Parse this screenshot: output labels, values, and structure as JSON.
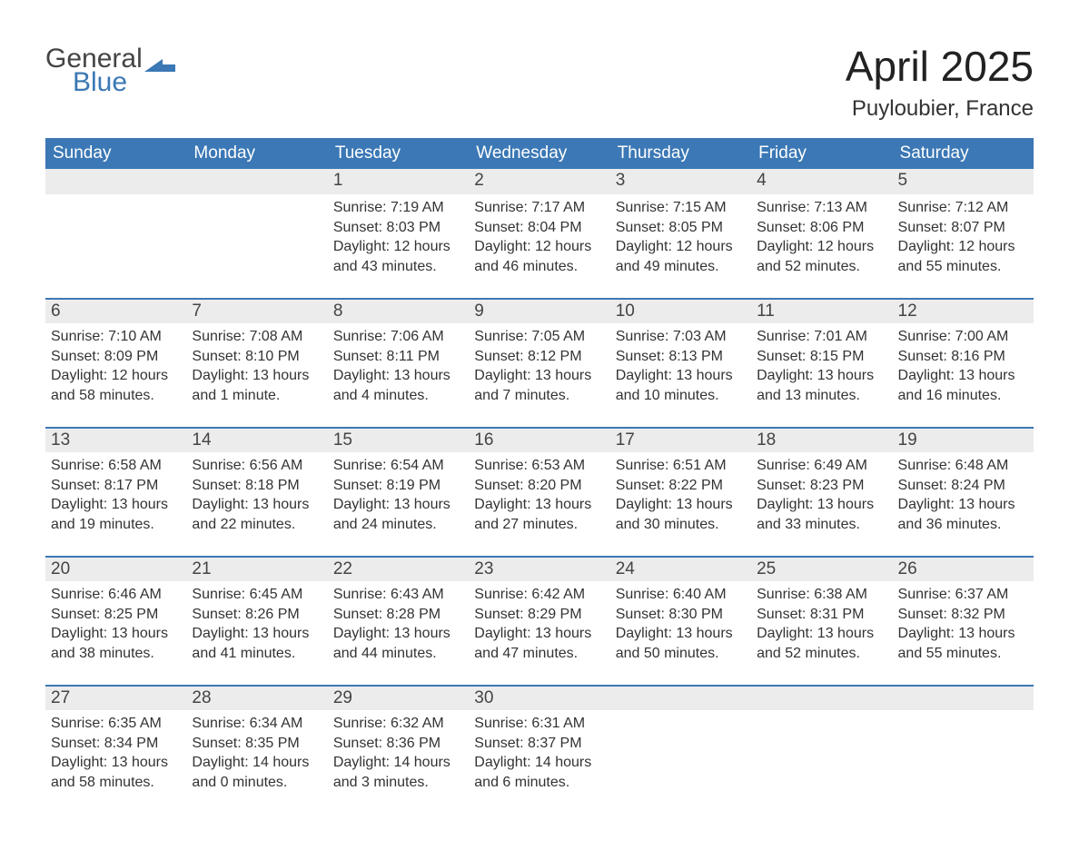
{
  "logo": {
    "general": "General",
    "blue": "Blue",
    "accent_color": "#3b78b5"
  },
  "title": "April 2025",
  "location": "Puyloubier, France",
  "colors": {
    "header_bg": "#3b78b5",
    "header_text": "#ffffff",
    "row_bg": "#ececec",
    "text": "#333333",
    "page_bg": "#ffffff"
  },
  "day_headers": [
    "Sunday",
    "Monday",
    "Tuesday",
    "Wednesday",
    "Thursday",
    "Friday",
    "Saturday"
  ],
  "weeks": [
    [
      {
        "n": "",
        "sunrise": "",
        "sunset": "",
        "daylight": ""
      },
      {
        "n": "",
        "sunrise": "",
        "sunset": "",
        "daylight": ""
      },
      {
        "n": "1",
        "sunrise": "Sunrise: 7:19 AM",
        "sunset": "Sunset: 8:03 PM",
        "daylight": "Daylight: 12 hours and 43 minutes."
      },
      {
        "n": "2",
        "sunrise": "Sunrise: 7:17 AM",
        "sunset": "Sunset: 8:04 PM",
        "daylight": "Daylight: 12 hours and 46 minutes."
      },
      {
        "n": "3",
        "sunrise": "Sunrise: 7:15 AM",
        "sunset": "Sunset: 8:05 PM",
        "daylight": "Daylight: 12 hours and 49 minutes."
      },
      {
        "n": "4",
        "sunrise": "Sunrise: 7:13 AM",
        "sunset": "Sunset: 8:06 PM",
        "daylight": "Daylight: 12 hours and 52 minutes."
      },
      {
        "n": "5",
        "sunrise": "Sunrise: 7:12 AM",
        "sunset": "Sunset: 8:07 PM",
        "daylight": "Daylight: 12 hours and 55 minutes."
      }
    ],
    [
      {
        "n": "6",
        "sunrise": "Sunrise: 7:10 AM",
        "sunset": "Sunset: 8:09 PM",
        "daylight": "Daylight: 12 hours and 58 minutes."
      },
      {
        "n": "7",
        "sunrise": "Sunrise: 7:08 AM",
        "sunset": "Sunset: 8:10 PM",
        "daylight": "Daylight: 13 hours and 1 minute."
      },
      {
        "n": "8",
        "sunrise": "Sunrise: 7:06 AM",
        "sunset": "Sunset: 8:11 PM",
        "daylight": "Daylight: 13 hours and 4 minutes."
      },
      {
        "n": "9",
        "sunrise": "Sunrise: 7:05 AM",
        "sunset": "Sunset: 8:12 PM",
        "daylight": "Daylight: 13 hours and 7 minutes."
      },
      {
        "n": "10",
        "sunrise": "Sunrise: 7:03 AM",
        "sunset": "Sunset: 8:13 PM",
        "daylight": "Daylight: 13 hours and 10 minutes."
      },
      {
        "n": "11",
        "sunrise": "Sunrise: 7:01 AM",
        "sunset": "Sunset: 8:15 PM",
        "daylight": "Daylight: 13 hours and 13 minutes."
      },
      {
        "n": "12",
        "sunrise": "Sunrise: 7:00 AM",
        "sunset": "Sunset: 8:16 PM",
        "daylight": "Daylight: 13 hours and 16 minutes."
      }
    ],
    [
      {
        "n": "13",
        "sunrise": "Sunrise: 6:58 AM",
        "sunset": "Sunset: 8:17 PM",
        "daylight": "Daylight: 13 hours and 19 minutes."
      },
      {
        "n": "14",
        "sunrise": "Sunrise: 6:56 AM",
        "sunset": "Sunset: 8:18 PM",
        "daylight": "Daylight: 13 hours and 22 minutes."
      },
      {
        "n": "15",
        "sunrise": "Sunrise: 6:54 AM",
        "sunset": "Sunset: 8:19 PM",
        "daylight": "Daylight: 13 hours and 24 minutes."
      },
      {
        "n": "16",
        "sunrise": "Sunrise: 6:53 AM",
        "sunset": "Sunset: 8:20 PM",
        "daylight": "Daylight: 13 hours and 27 minutes."
      },
      {
        "n": "17",
        "sunrise": "Sunrise: 6:51 AM",
        "sunset": "Sunset: 8:22 PM",
        "daylight": "Daylight: 13 hours and 30 minutes."
      },
      {
        "n": "18",
        "sunrise": "Sunrise: 6:49 AM",
        "sunset": "Sunset: 8:23 PM",
        "daylight": "Daylight: 13 hours and 33 minutes."
      },
      {
        "n": "19",
        "sunrise": "Sunrise: 6:48 AM",
        "sunset": "Sunset: 8:24 PM",
        "daylight": "Daylight: 13 hours and 36 minutes."
      }
    ],
    [
      {
        "n": "20",
        "sunrise": "Sunrise: 6:46 AM",
        "sunset": "Sunset: 8:25 PM",
        "daylight": "Daylight: 13 hours and 38 minutes."
      },
      {
        "n": "21",
        "sunrise": "Sunrise: 6:45 AM",
        "sunset": "Sunset: 8:26 PM",
        "daylight": "Daylight: 13 hours and 41 minutes."
      },
      {
        "n": "22",
        "sunrise": "Sunrise: 6:43 AM",
        "sunset": "Sunset: 8:28 PM",
        "daylight": "Daylight: 13 hours and 44 minutes."
      },
      {
        "n": "23",
        "sunrise": "Sunrise: 6:42 AM",
        "sunset": "Sunset: 8:29 PM",
        "daylight": "Daylight: 13 hours and 47 minutes."
      },
      {
        "n": "24",
        "sunrise": "Sunrise: 6:40 AM",
        "sunset": "Sunset: 8:30 PM",
        "daylight": "Daylight: 13 hours and 50 minutes."
      },
      {
        "n": "25",
        "sunrise": "Sunrise: 6:38 AM",
        "sunset": "Sunset: 8:31 PM",
        "daylight": "Daylight: 13 hours and 52 minutes."
      },
      {
        "n": "26",
        "sunrise": "Sunrise: 6:37 AM",
        "sunset": "Sunset: 8:32 PM",
        "daylight": "Daylight: 13 hours and 55 minutes."
      }
    ],
    [
      {
        "n": "27",
        "sunrise": "Sunrise: 6:35 AM",
        "sunset": "Sunset: 8:34 PM",
        "daylight": "Daylight: 13 hours and 58 minutes."
      },
      {
        "n": "28",
        "sunrise": "Sunrise: 6:34 AM",
        "sunset": "Sunset: 8:35 PM",
        "daylight": "Daylight: 14 hours and 0 minutes."
      },
      {
        "n": "29",
        "sunrise": "Sunrise: 6:32 AM",
        "sunset": "Sunset: 8:36 PM",
        "daylight": "Daylight: 14 hours and 3 minutes."
      },
      {
        "n": "30",
        "sunrise": "Sunrise: 6:31 AM",
        "sunset": "Sunset: 8:37 PM",
        "daylight": "Daylight: 14 hours and 6 minutes."
      },
      {
        "n": "",
        "sunrise": "",
        "sunset": "",
        "daylight": ""
      },
      {
        "n": "",
        "sunrise": "",
        "sunset": "",
        "daylight": ""
      },
      {
        "n": "",
        "sunrise": "",
        "sunset": "",
        "daylight": ""
      }
    ]
  ]
}
